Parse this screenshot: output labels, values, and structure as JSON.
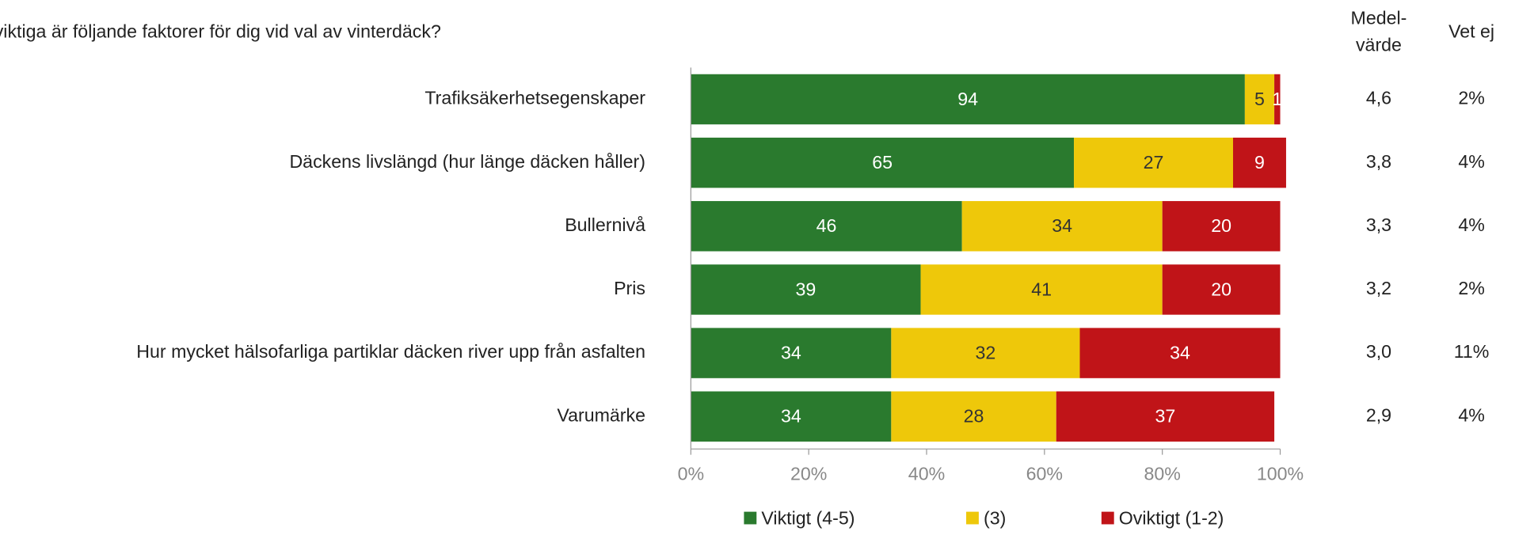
{
  "chart_data": {
    "type": "stacked_barh",
    "title": "viktiga är följande faktorer för dig vid val av vinterdäck?",
    "categories": [
      "Trafiksäkerhetsegenskaper",
      "Däckens livslängd (hur länge däcken håller)",
      "Bullernivå",
      "Pris",
      "Hur mycket hälsofarliga partiklar däcken river upp från asfalten",
      "Varumärke"
    ],
    "series": [
      {
        "name": "Viktigt (4-5)",
        "color": "#2a7a2e",
        "values": [
          94,
          65,
          46,
          39,
          34,
          34
        ]
      },
      {
        "name": "(3)",
        "color": "#eec80a",
        "values": [
          5,
          27,
          34,
          41,
          32,
          28
        ]
      },
      {
        "name": "Oviktigt (1-2)",
        "color": "#c01418",
        "values": [
          1,
          9,
          20,
          20,
          34,
          37
        ]
      }
    ],
    "xlim": [
      0,
      100
    ],
    "xticks": [
      {
        "value": 0,
        "label": "0%"
      },
      {
        "value": 20,
        "label": "20%"
      },
      {
        "value": 40,
        "label": "40%"
      },
      {
        "value": 60,
        "label": "60%"
      },
      {
        "value": 80,
        "label": "80%"
      },
      {
        "value": 100,
        "label": "100%"
      }
    ],
    "legend": "bottom",
    "columns": [
      {
        "header": [
          "Medel-",
          "värde"
        ],
        "values": [
          "4,6",
          "3,8",
          "3,3",
          "3,2",
          "3,0",
          "2,9"
        ]
      },
      {
        "header": [
          "Vet ej"
        ],
        "values": [
          "2%",
          "4%",
          "4%",
          "2%",
          "11%",
          "4%"
        ]
      }
    ]
  }
}
